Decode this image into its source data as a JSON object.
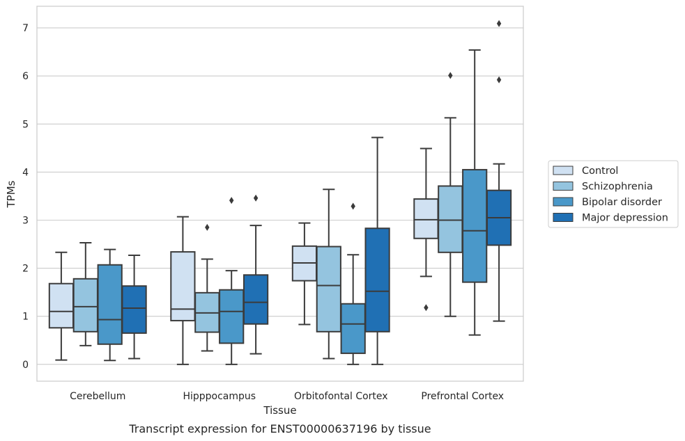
{
  "chart_data": {
    "type": "box",
    "xlabel": "Tissue",
    "ylabel": "TPMs",
    "caption": "Transcript expression for ENST00000637196 by tissue",
    "ylim": [
      -0.35,
      7.45
    ],
    "yticks": [
      0,
      1,
      2,
      3,
      4,
      5,
      6,
      7
    ],
    "grid": "horizontal",
    "legend_position": "right",
    "categories": [
      "Cerebellum",
      "Hipppocampus",
      "Orbitofontal Cortex",
      "Prefrontal Cortex"
    ],
    "series": [
      {
        "name": "Control",
        "color": "#d0e1f2",
        "boxes": [
          {
            "whislo": 0.09,
            "q1": 0.76,
            "med": 1.1,
            "q3": 1.68,
            "whishi": 2.33,
            "fliers": []
          },
          {
            "whislo": 0.0,
            "q1": 0.91,
            "med": 1.15,
            "q3": 2.34,
            "whishi": 3.07,
            "fliers": []
          },
          {
            "whislo": 0.83,
            "q1": 1.74,
            "med": 2.11,
            "q3": 2.46,
            "whishi": 2.94,
            "fliers": []
          },
          {
            "whislo": 1.83,
            "q1": 2.62,
            "med": 3.01,
            "q3": 3.44,
            "whishi": 4.49,
            "fliers": [
              1.18
            ]
          }
        ]
      },
      {
        "name": "Schizophrenia",
        "color": "#94c4df",
        "boxes": [
          {
            "whislo": 0.39,
            "q1": 0.68,
            "med": 1.2,
            "q3": 1.78,
            "whishi": 2.53,
            "fliers": []
          },
          {
            "whislo": 0.28,
            "q1": 0.67,
            "med": 1.07,
            "q3": 1.49,
            "whishi": 2.19,
            "fliers": [
              2.85
            ]
          },
          {
            "whislo": 0.12,
            "q1": 0.68,
            "med": 1.64,
            "q3": 2.45,
            "whishi": 3.64,
            "fliers": []
          },
          {
            "whislo": 1.0,
            "q1": 2.33,
            "med": 3.0,
            "q3": 3.71,
            "whishi": 5.13,
            "fliers": [
              6.01
            ]
          }
        ]
      },
      {
        "name": "Bipolar disorder",
        "color": "#4a98c9",
        "boxes": [
          {
            "whislo": 0.08,
            "q1": 0.42,
            "med": 0.93,
            "q3": 2.07,
            "whishi": 2.39,
            "fliers": []
          },
          {
            "whislo": 0.0,
            "q1": 0.44,
            "med": 1.1,
            "q3": 1.55,
            "whishi": 1.95,
            "fliers": [
              3.41
            ]
          },
          {
            "whislo": 0.0,
            "q1": 0.23,
            "med": 0.84,
            "q3": 1.26,
            "whishi": 2.28,
            "fliers": [
              3.29
            ]
          },
          {
            "whislo": 0.61,
            "q1": 1.71,
            "med": 2.78,
            "q3": 4.05,
            "whishi": 6.54,
            "fliers": []
          }
        ]
      },
      {
        "name": "Major depression",
        "color": "#2070b4",
        "boxes": [
          {
            "whislo": 0.12,
            "q1": 0.65,
            "med": 1.17,
            "q3": 1.63,
            "whishi": 2.27,
            "fliers": []
          },
          {
            "whislo": 0.22,
            "q1": 0.84,
            "med": 1.29,
            "q3": 1.86,
            "whishi": 2.89,
            "fliers": [
              3.46
            ]
          },
          {
            "whislo": 0.0,
            "q1": 0.68,
            "med": 1.52,
            "q3": 2.83,
            "whishi": 4.72,
            "fliers": []
          },
          {
            "whislo": 0.9,
            "q1": 2.48,
            "med": 3.05,
            "q3": 3.62,
            "whishi": 4.17,
            "fliers": [
              5.92,
              7.09
            ]
          }
        ]
      }
    ]
  }
}
